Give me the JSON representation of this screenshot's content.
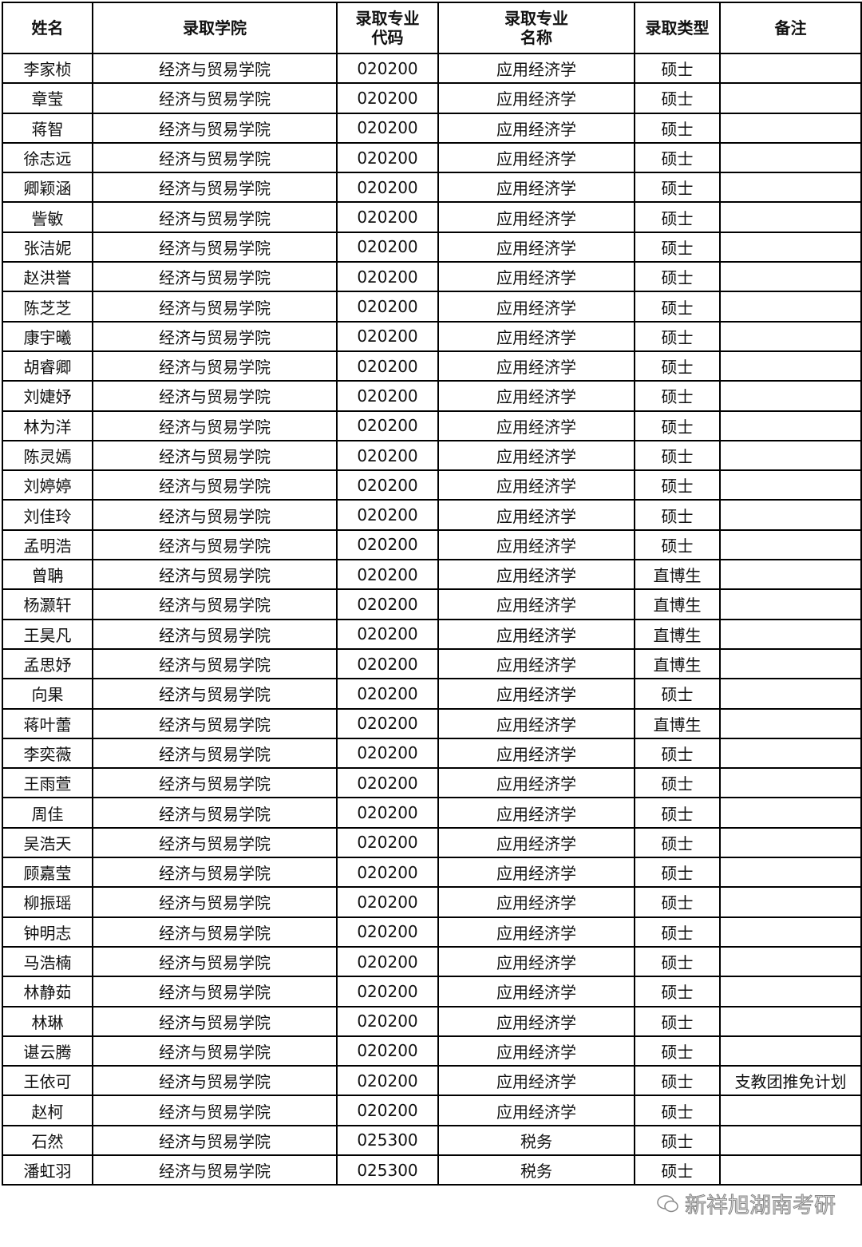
{
  "table": {
    "header": [
      "姓名",
      "录取学院",
      "录取专业\n代码",
      "录取专业\n名称",
      "录取类型",
      "备注"
    ],
    "rows": [
      [
        "李家桢",
        "经济与贸易学院",
        "020200",
        "应用经济学",
        "硕士"
      ],
      [
        "章莹",
        "经济与贸易学院",
        "020200",
        "应用经济学",
        "硕士"
      ],
      [
        "蒋智",
        "经济与贸易学院",
        "020200",
        "应用经济学",
        "硕士"
      ],
      [
        "徐志远",
        "经济与贸易学院",
        "020200",
        "应用经济学",
        "硕士"
      ],
      [
        "卿颖涵",
        "经济与贸易学院",
        "020200",
        "应用经济学",
        "硕士"
      ],
      [
        "訾敏",
        "经济与贸易学院",
        "020200",
        "应用经济学",
        "硕士"
      ],
      [
        "张洁妮",
        "经济与贸易学院",
        "020200",
        "应用经济学",
        "硕士"
      ],
      [
        "赵洪誉",
        "经济与贸易学院",
        "020200",
        "应用经济学",
        "硕士"
      ],
      [
        "陈芝芝",
        "经济与贸易学院",
        "020200",
        "应用经济学",
        "硕士"
      ],
      [
        "康宇曦",
        "经济与贸易学院",
        "020200",
        "应用经济学",
        "硕士"
      ],
      [
        "胡睿卿",
        "经济与贸易学院",
        "020200",
        "应用经济学",
        "硕士"
      ],
      [
        "刘婕妤",
        "经济与贸易学院",
        "020200",
        "应用经济学",
        "硕士"
      ],
      [
        "林为洋",
        "经济与贸易学院",
        "020200",
        "应用经济学",
        "硕士"
      ],
      [
        "陈灵嫣",
        "经济与贸易学院",
        "020200",
        "应用经济学",
        "硕士"
      ],
      [
        "刘婷婷",
        "经济与贸易学院",
        "020200",
        "应用经济学",
        "硕士"
      ],
      [
        "刘佳玲",
        "经济与贸易学院",
        "020200",
        "应用经济学",
        "硕士"
      ],
      [
        "孟明浩",
        "经济与贸易学院",
        "020200",
        "应用经济学",
        "硕士"
      ],
      [
        "曾聃",
        "经济与贸易学院",
        "020200",
        "应用经济学",
        "直博生"
      ],
      [
        "杨灏轩",
        "经济与贸易学院",
        "020200",
        "应用经济学",
        "直博生"
      ],
      [
        "王昊凡",
        "经济与贸易学院",
        "020200",
        "应用经济学",
        "直博生"
      ],
      [
        "孟思妤",
        "经济与贸易学院",
        "020200",
        "应用经济学",
        "直博生"
      ],
      [
        "向果",
        "经济与贸易学院",
        "020200",
        "应用经济学",
        "硕士"
      ],
      [
        "蒋叶蕾",
        "经济与贸易学院",
        "020200",
        "应用经济学",
        "直博生"
      ],
      [
        "李奕薇",
        "经济与贸易学院",
        "020200",
        "应用经济学",
        "硕士"
      ],
      [
        "王雨萱",
        "经济与贸易学院",
        "020200",
        "应用经济学",
        "硕士"
      ],
      [
        "周佳",
        "经济与贸易学院",
        "020200",
        "应用经济学",
        "硕士"
      ],
      [
        "吴浩天",
        "经济与贸易学院",
        "020200",
        "应用经济学",
        "硕士"
      ],
      [
        "顾嘉莹",
        "经济与贸易学院",
        "020200",
        "应用经济学",
        "硕士"
      ],
      [
        "柳振瑶",
        "经济与贸易学院",
        "020200",
        "应用经济学",
        "硕士"
      ],
      [
        "钟明志",
        "经济与贸易学院",
        "020200",
        "应用经济学",
        "硕士"
      ],
      [
        "马浩楠",
        "经济与贸易学院",
        "020200",
        "应用经济学",
        "硕士"
      ],
      [
        "林静茹",
        "经济与贸易学院",
        "020200",
        "应用经济学",
        "硕士"
      ],
      [
        "林琳",
        "经济与贸易学院",
        "020200",
        "应用经济学",
        "硕士"
      ],
      [
        "谌云腾",
        "经济与贸易学院",
        "020200",
        "应用经济学",
        "硕士"
      ],
      [
        "王依可",
        "经济与贸易学院",
        "020200",
        "应用经济学",
        "硕士",
        "支教团推免计划"
      ],
      [
        "赵柯",
        "经济与贸易学院",
        "020200",
        "应用经济学",
        "硕士"
      ],
      [
        "石然",
        "经济与贸易学院",
        "025300",
        "税务",
        "硕士"
      ],
      [
        "潘虹羽",
        "经济与贸易学院",
        "025300",
        "税务",
        "硕士"
      ]
    ]
  },
  "watermark": "新祥旭湖南考研"
}
